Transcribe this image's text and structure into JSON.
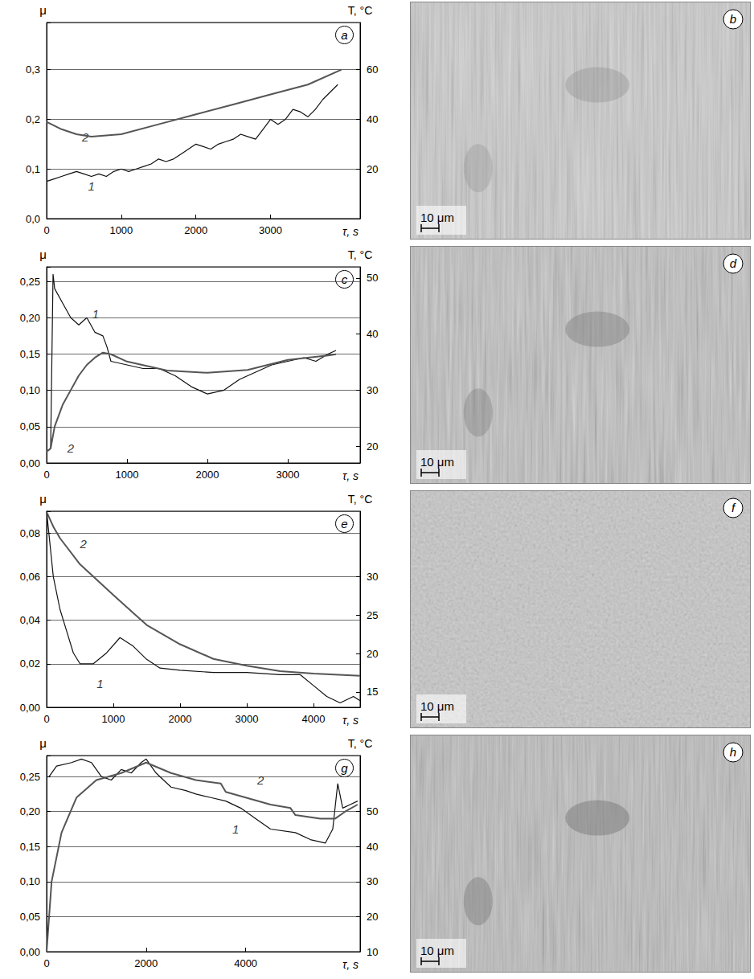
{
  "chart_data": [
    {
      "type": "line",
      "panel": "a",
      "x_label": "τ, s",
      "y_label": "μ",
      "y2_label": "T, °C",
      "xlim": [
        0,
        4200
      ],
      "xticks": [
        0,
        1000,
        2000,
        3000
      ],
      "ylim": [
        0,
        0.395
      ],
      "yticks": [
        {
          "value": 0,
          "label": "0,0"
        },
        {
          "value": 0.1,
          "label": "0,1"
        },
        {
          "value": 0.2,
          "label": "0,2"
        },
        {
          "value": 0.3,
          "label": "0,3"
        }
      ],
      "y2lim": [
        0,
        79
      ],
      "y2ticks": [
        20,
        40,
        60
      ],
      "grid": true,
      "series": [
        {
          "axis": "y",
          "color": "#111111",
          "x": [
            0,
            100,
            200,
            300,
            400,
            500,
            600,
            700,
            800,
            900,
            1000,
            1100,
            1200,
            1300,
            1400,
            1500,
            1600,
            1700,
            1800,
            1900,
            2000,
            2100,
            2200,
            2300,
            2400,
            2500,
            2600,
            2700,
            2800,
            2900,
            3000,
            3100,
            3200,
            3300,
            3400,
            3500,
            3600,
            3700,
            3800,
            3900
          ],
          "values": [
            0.075,
            0.08,
            0.085,
            0.09,
            0.095,
            0.09,
            0.085,
            0.09,
            0.085,
            0.095,
            0.1,
            0.095,
            0.1,
            0.105,
            0.11,
            0.12,
            0.115,
            0.12,
            0.13,
            0.14,
            0.15,
            0.145,
            0.14,
            0.15,
            0.155,
            0.16,
            0.17,
            0.165,
            0.16,
            0.18,
            0.2,
            0.19,
            0.2,
            0.22,
            0.215,
            0.205,
            0.22,
            0.24,
            0.255,
            0.27
          ]
        },
        {
          "axis": "y2",
          "color": "#555555",
          "x": [
            0,
            200,
            400,
            600,
            800,
            1000,
            1500,
            2000,
            2500,
            3000,
            3500,
            3950
          ],
          "values": [
            39,
            36,
            34,
            33,
            33.5,
            34,
            38,
            42,
            46,
            50,
            54,
            60
          ]
        }
      ],
      "annotations": [
        {
          "text": "1",
          "x": 600,
          "y": 0.065
        },
        {
          "text": "2",
          "x": 520,
          "y": 0.165
        }
      ]
    },
    {
      "type": "line",
      "panel": "c",
      "x_label": "τ, s",
      "y_label": "μ",
      "y2_label": "T, °C",
      "xlim": [
        0,
        3900
      ],
      "xticks": [
        0,
        1000,
        2000,
        3000
      ],
      "ylim": [
        0,
        0.27
      ],
      "yticks": [
        {
          "value": 0,
          "label": "0,00"
        },
        {
          "value": 0.05,
          "label": "0,05"
        },
        {
          "value": 0.1,
          "label": "0,10"
        },
        {
          "value": 0.15,
          "label": "0,15"
        },
        {
          "value": 0.2,
          "label": "0,20"
        },
        {
          "value": 0.25,
          "label": "0,25"
        }
      ],
      "y2lim": [
        17,
        52
      ],
      "y2ticks": [
        20,
        30,
        40,
        50
      ],
      "grid": true,
      "series": [
        {
          "axis": "y",
          "color": "#111111",
          "x": [
            50,
            80,
            100,
            200,
            300,
            400,
            500,
            600,
            700,
            750,
            800,
            1000,
            1200,
            1400,
            1600,
            1800,
            2000,
            2200,
            2400,
            2600,
            2800,
            3000,
            3200,
            3350,
            3500,
            3600
          ],
          "values": [
            0.02,
            0.26,
            0.24,
            0.22,
            0.2,
            0.19,
            0.2,
            0.18,
            0.175,
            0.16,
            0.14,
            0.135,
            0.13,
            0.13,
            0.12,
            0.105,
            0.095,
            0.1,
            0.115,
            0.125,
            0.135,
            0.14,
            0.145,
            0.14,
            0.15,
            0.155
          ]
        },
        {
          "axis": "y2",
          "color": "#555555",
          "x": [
            0,
            50,
            100,
            200,
            300,
            400,
            500,
            600,
            700,
            800,
            1000,
            1500,
            2000,
            2500,
            3000,
            3500,
            3600
          ],
          "values": [
            19,
            19.6,
            23.5,
            27.4,
            30,
            32.6,
            34.5,
            35.8,
            36.7,
            36.4,
            35.1,
            33.5,
            33.1,
            33.6,
            35.4,
            36.2,
            36.4
          ]
        }
      ],
      "annotations": [
        {
          "text": "1",
          "x": 610,
          "y": 0.205
        },
        {
          "text": "2",
          "x": 300,
          "y": 0.02
        }
      ]
    },
    {
      "type": "line",
      "panel": "e",
      "x_label": "τ, s",
      "y_label": "μ",
      "y2_label": "T, °C",
      "xlim": [
        0,
        4700
      ],
      "xticks": [
        0,
        1000,
        2000,
        3000,
        4000
      ],
      "ylim": [
        0,
        0.09
      ],
      "yticks": [
        {
          "value": 0,
          "label": "0,00"
        },
        {
          "value": 0.02,
          "label": "0,02"
        },
        {
          "value": 0.04,
          "label": "0,04"
        },
        {
          "value": 0.06,
          "label": "0,06"
        },
        {
          "value": 0.08,
          "label": "0,08"
        }
      ],
      "y2lim": [
        13,
        38.5
      ],
      "y2ticks": [
        15,
        20,
        25,
        30
      ],
      "grid": true,
      "series": [
        {
          "axis": "y",
          "color": "#111111",
          "x": [
            0,
            100,
            200,
            300,
            400,
            500,
            700,
            900,
            1100,
            1300,
            1500,
            1700,
            2000,
            2500,
            3000,
            3500,
            3800,
            4000,
            4200,
            4400,
            4600,
            4700
          ],
          "values": [
            0.09,
            0.06,
            0.045,
            0.035,
            0.025,
            0.02,
            0.02,
            0.025,
            0.032,
            0.028,
            0.022,
            0.018,
            0.017,
            0.016,
            0.016,
            0.015,
            0.015,
            0.01,
            0.005,
            0.002,
            0.005,
            0.003
          ]
        },
        {
          "axis": "y2",
          "color": "#555555",
          "x": [
            0,
            100,
            200,
            500,
            1000,
            1500,
            2000,
            2500,
            3000,
            3500,
            4000,
            4700
          ],
          "values": [
            38.4,
            36.5,
            35,
            31.6,
            27.6,
            23.7,
            21.2,
            19.3,
            18.4,
            17.7,
            17.4,
            17.1
          ]
        }
      ],
      "annotations": [
        {
          "text": "1",
          "x": 800,
          "y": 0.011
        },
        {
          "text": "2",
          "x": 550,
          "y": 0.075
        }
      ]
    },
    {
      "type": "line",
      "panel": "g",
      "x_label": "τ, s",
      "y_label": "μ",
      "y2_label": "T, °C",
      "xlim": [
        0,
        6300
      ],
      "xticks": [
        0,
        2000,
        4000
      ],
      "ylim": [
        0,
        0.28
      ],
      "yticks": [
        {
          "value": 0,
          "label": "0,00"
        },
        {
          "value": 0.05,
          "label": "0,05"
        },
        {
          "value": 0.1,
          "label": "0,10"
        },
        {
          "value": 0.15,
          "label": "0,15"
        },
        {
          "value": 0.2,
          "label": "0,20"
        },
        {
          "value": 0.25,
          "label": "0,25"
        }
      ],
      "y2lim": [
        10,
        66
      ],
      "y2ticks": [
        10,
        20,
        30,
        40,
        50
      ],
      "grid": true,
      "series": [
        {
          "axis": "y",
          "color": "#111111",
          "x": [
            50,
            200,
            500,
            700,
            900,
            1100,
            1300,
            1500,
            1700,
            1900,
            2000,
            2200,
            2500,
            2800,
            3000,
            3300,
            3600,
            3900,
            4200,
            4500,
            5000,
            5300,
            5600,
            5750,
            5850,
            5950,
            6100,
            6250
          ],
          "values": [
            0.25,
            0.265,
            0.27,
            0.275,
            0.27,
            0.25,
            0.245,
            0.26,
            0.255,
            0.27,
            0.275,
            0.255,
            0.235,
            0.23,
            0.225,
            0.22,
            0.215,
            0.205,
            0.19,
            0.175,
            0.17,
            0.16,
            0.155,
            0.175,
            0.24,
            0.205,
            0.21,
            0.215
          ]
        },
        {
          "axis": "y2",
          "color": "#555555",
          "x": [
            0,
            100,
            300,
            600,
            1000,
            1500,
            2000,
            2500,
            3000,
            3500,
            3600,
            4000,
            4500,
            4900,
            5000,
            5500,
            5800,
            6000,
            6250
          ],
          "values": [
            10,
            30,
            44,
            54,
            59,
            61,
            64,
            61,
            59,
            58,
            55.6,
            54,
            52,
            51,
            49,
            48,
            48,
            50,
            52
          ]
        }
      ],
      "annotations": [
        {
          "text": "1",
          "x": 3800,
          "y": 0.175
        },
        {
          "text": "2",
          "x": 4300,
          "y": 0.245
        }
      ]
    }
  ],
  "images": [
    {
      "panel": "b",
      "scale_bar": "10 μm"
    },
    {
      "panel": "d",
      "scale_bar": "10 μm"
    },
    {
      "panel": "f",
      "scale_bar": "10 μm"
    },
    {
      "panel": "h",
      "scale_bar": "10 μm"
    }
  ]
}
